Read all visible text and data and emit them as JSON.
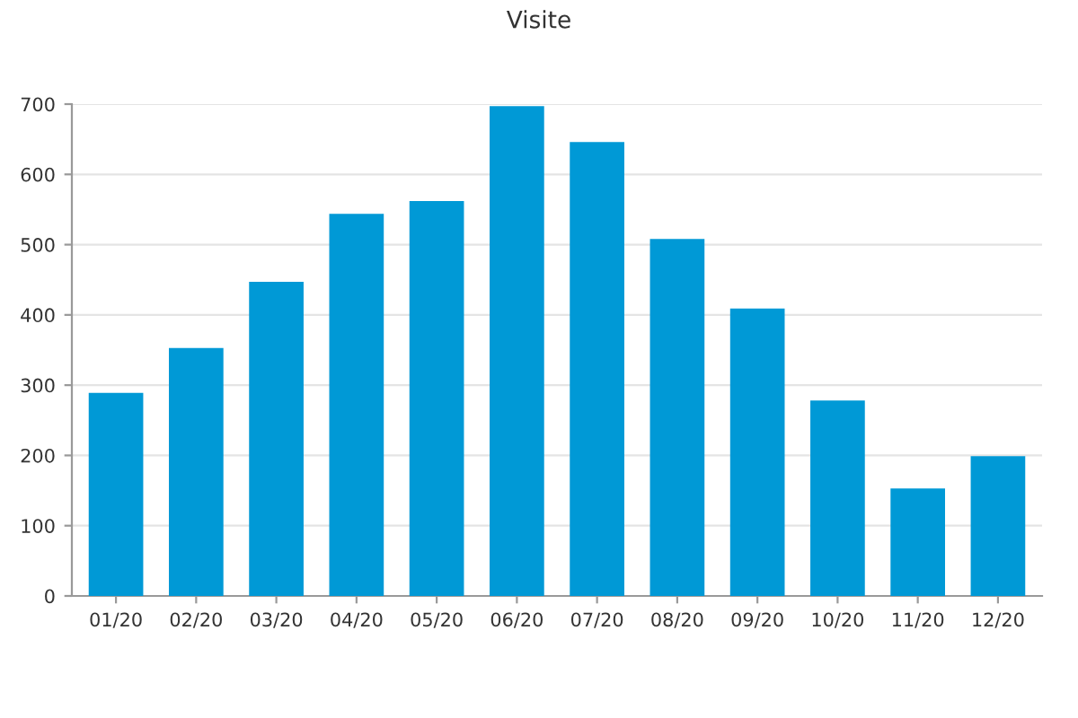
{
  "chart_data": {
    "type": "bar",
    "title": "Visite",
    "categories": [
      "01/20",
      "02/20",
      "03/20",
      "04/20",
      "05/20",
      "06/20",
      "07/20",
      "08/20",
      "09/20",
      "10/20",
      "11/20",
      "12/20"
    ],
    "values": [
      289,
      353,
      447,
      544,
      562,
      697,
      646,
      508,
      409,
      278,
      153,
      199
    ],
    "color": "#0099d6",
    "ylim": [
      0,
      700
    ],
    "yticks": [
      0,
      100,
      200,
      300,
      400,
      500,
      600,
      700
    ],
    "grid": "y"
  }
}
